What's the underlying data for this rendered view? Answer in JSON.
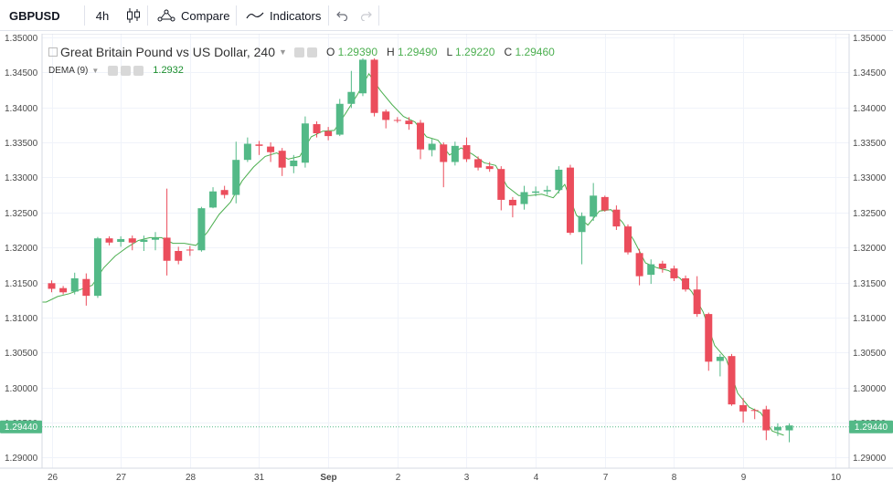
{
  "toolbar": {
    "symbol": "GBPUSD",
    "interval": "4h",
    "compare_label": "Compare",
    "indicators_label": "Indicators",
    "icons": [
      "candles-icon",
      "compare-icon",
      "indicators-icon",
      "undo-icon",
      "redo-icon"
    ]
  },
  "legend": {
    "title": "Great Britain Pound vs US Dollar, 240",
    "open_label": "O",
    "open": "1.29390",
    "high_label": "H",
    "high": "1.29490",
    "low_label": "L",
    "low": "1.29220",
    "close_label": "C",
    "close": "1.29460",
    "indicator_name": "DEMA (9)",
    "indicator_value": "1.2932"
  },
  "price_tag": "1.29440",
  "colors": {
    "up": "#53b987",
    "down": "#eb4d5c",
    "dema": "#4caf50",
    "grid": "#f0f3fa",
    "price_line": "#53b987"
  },
  "chart_data": {
    "type": "candlestick",
    "symbol": "GBPUSD",
    "timeframe": "240",
    "ylim": [
      1.2885,
      1.3505
    ],
    "y_ticks": [
      "1.35000",
      "1.34500",
      "1.34000",
      "1.33500",
      "1.33000",
      "1.32500",
      "1.32000",
      "1.31500",
      "1.31000",
      "1.30500",
      "1.30000",
      "1.29500",
      "1.29000"
    ],
    "x_tick_labels": [
      "26",
      "27",
      "28",
      "31",
      "Sep",
      "2",
      "3",
      "4",
      "7",
      "8",
      "9",
      "10"
    ],
    "grid": true,
    "last_price": 1.2944,
    "candles": [
      {
        "o": 1.3149,
        "h": 1.3153,
        "l": 1.3136,
        "c": 1.3141
      },
      {
        "o": 1.3142,
        "h": 1.3145,
        "l": 1.3133,
        "c": 1.3136
      },
      {
        "o": 1.3137,
        "h": 1.3164,
        "l": 1.3133,
        "c": 1.3156
      },
      {
        "o": 1.3155,
        "h": 1.3163,
        "l": 1.3117,
        "c": 1.3131
      },
      {
        "o": 1.3131,
        "h": 1.3215,
        "l": 1.3128,
        "c": 1.3213
      },
      {
        "o": 1.3213,
        "h": 1.3216,
        "l": 1.3203,
        "c": 1.3207
      },
      {
        "o": 1.3208,
        "h": 1.3216,
        "l": 1.3201,
        "c": 1.3212
      },
      {
        "o": 1.3213,
        "h": 1.3217,
        "l": 1.3196,
        "c": 1.3207
      },
      {
        "o": 1.3208,
        "h": 1.3217,
        "l": 1.3195,
        "c": 1.3211
      },
      {
        "o": 1.3211,
        "h": 1.3222,
        "l": 1.3196,
        "c": 1.3214
      },
      {
        "o": 1.3214,
        "h": 1.3284,
        "l": 1.316,
        "c": 1.3181
      },
      {
        "o": 1.3195,
        "h": 1.3201,
        "l": 1.3176,
        "c": 1.3181
      },
      {
        "o": 1.3197,
        "h": 1.3202,
        "l": 1.3188,
        "c": 1.3196
      },
      {
        "o": 1.3196,
        "h": 1.3258,
        "l": 1.3194,
        "c": 1.3256
      },
      {
        "o": 1.3257,
        "h": 1.3286,
        "l": 1.3256,
        "c": 1.328
      },
      {
        "o": 1.3282,
        "h": 1.3288,
        "l": 1.327,
        "c": 1.3275
      },
      {
        "o": 1.3275,
        "h": 1.3351,
        "l": 1.3263,
        "c": 1.3325
      },
      {
        "o": 1.3325,
        "h": 1.3357,
        "l": 1.3322,
        "c": 1.3348
      },
      {
        "o": 1.3347,
        "h": 1.3352,
        "l": 1.3332,
        "c": 1.3345
      },
      {
        "o": 1.3344,
        "h": 1.335,
        "l": 1.3322,
        "c": 1.3336
      },
      {
        "o": 1.3338,
        "h": 1.3342,
        "l": 1.3302,
        "c": 1.3314
      },
      {
        "o": 1.3316,
        "h": 1.3332,
        "l": 1.3306,
        "c": 1.3324
      },
      {
        "o": 1.3321,
        "h": 1.3387,
        "l": 1.3314,
        "c": 1.3377
      },
      {
        "o": 1.3376,
        "h": 1.338,
        "l": 1.3357,
        "c": 1.3363
      },
      {
        "o": 1.3366,
        "h": 1.3372,
        "l": 1.3353,
        "c": 1.3359
      },
      {
        "o": 1.3361,
        "h": 1.3412,
        "l": 1.3359,
        "c": 1.3405
      },
      {
        "o": 1.3405,
        "h": 1.3452,
        "l": 1.3399,
        "c": 1.3422
      },
      {
        "o": 1.342,
        "h": 1.347,
        "l": 1.3416,
        "c": 1.3468
      },
      {
        "o": 1.3468,
        "h": 1.347,
        "l": 1.3387,
        "c": 1.3392
      },
      {
        "o": 1.3394,
        "h": 1.3397,
        "l": 1.337,
        "c": 1.3382
      },
      {
        "o": 1.3382,
        "h": 1.3386,
        "l": 1.3378,
        "c": 1.3381
      },
      {
        "o": 1.3381,
        "h": 1.3386,
        "l": 1.3368,
        "c": 1.3376
      },
      {
        "o": 1.3378,
        "h": 1.3382,
        "l": 1.3326,
        "c": 1.334
      },
      {
        "o": 1.3339,
        "h": 1.3355,
        "l": 1.333,
        "c": 1.3348
      },
      {
        "o": 1.3347,
        "h": 1.335,
        "l": 1.3286,
        "c": 1.3322
      },
      {
        "o": 1.3322,
        "h": 1.3351,
        "l": 1.3317,
        "c": 1.3345
      },
      {
        "o": 1.3346,
        "h": 1.3357,
        "l": 1.3322,
        "c": 1.3326
      },
      {
        "o": 1.3326,
        "h": 1.333,
        "l": 1.331,
        "c": 1.3314
      },
      {
        "o": 1.3316,
        "h": 1.3322,
        "l": 1.3308,
        "c": 1.3312
      },
      {
        "o": 1.3312,
        "h": 1.3316,
        "l": 1.3253,
        "c": 1.3268
      },
      {
        "o": 1.3268,
        "h": 1.3272,
        "l": 1.3243,
        "c": 1.326
      },
      {
        "o": 1.3262,
        "h": 1.3288,
        "l": 1.3254,
        "c": 1.3279
      },
      {
        "o": 1.3278,
        "h": 1.3287,
        "l": 1.3273,
        "c": 1.328
      },
      {
        "o": 1.328,
        "h": 1.3288,
        "l": 1.3275,
        "c": 1.3282
      },
      {
        "o": 1.3282,
        "h": 1.3316,
        "l": 1.3277,
        "c": 1.3311
      },
      {
        "o": 1.3314,
        "h": 1.3318,
        "l": 1.3218,
        "c": 1.3221
      },
      {
        "o": 1.3222,
        "h": 1.325,
        "l": 1.3176,
        "c": 1.3245
      },
      {
        "o": 1.3244,
        "h": 1.3292,
        "l": 1.3238,
        "c": 1.3274
      },
      {
        "o": 1.3272,
        "h": 1.3274,
        "l": 1.3251,
        "c": 1.3253
      },
      {
        "o": 1.3254,
        "h": 1.326,
        "l": 1.3225,
        "c": 1.323
      },
      {
        "o": 1.323,
        "h": 1.3233,
        "l": 1.319,
        "c": 1.3193
      },
      {
        "o": 1.3192,
        "h": 1.3198,
        "l": 1.3146,
        "c": 1.3159
      },
      {
        "o": 1.3161,
        "h": 1.3183,
        "l": 1.3148,
        "c": 1.3176
      },
      {
        "o": 1.3177,
        "h": 1.3181,
        "l": 1.3164,
        "c": 1.317
      },
      {
        "o": 1.317,
        "h": 1.3174,
        "l": 1.3152,
        "c": 1.3156
      },
      {
        "o": 1.3156,
        "h": 1.316,
        "l": 1.3137,
        "c": 1.314
      },
      {
        "o": 1.314,
        "h": 1.3159,
        "l": 1.3101,
        "c": 1.3105
      },
      {
        "o": 1.3105,
        "h": 1.3107,
        "l": 1.3024,
        "c": 1.3037
      },
      {
        "o": 1.3038,
        "h": 1.3048,
        "l": 1.3016,
        "c": 1.3044
      },
      {
        "o": 1.3045,
        "h": 1.3048,
        "l": 1.2974,
        "c": 1.2976
      },
      {
        "o": 1.2975,
        "h": 1.2985,
        "l": 1.295,
        "c": 1.2966
      },
      {
        "o": 1.2968,
        "h": 1.297,
        "l": 1.2955,
        "c": 1.2967
      },
      {
        "o": 1.2969,
        "h": 1.2974,
        "l": 1.2925,
        "c": 1.2939
      },
      {
        "o": 1.2939,
        "h": 1.2949,
        "l": 1.2931,
        "c": 1.2944
      },
      {
        "o": 1.2939,
        "h": 1.2949,
        "l": 1.2922,
        "c": 1.2946
      }
    ],
    "indicator": {
      "name": "DEMA (9)",
      "last_value": 1.2932,
      "values": [
        1.3122,
        1.313,
        1.3134,
        1.314,
        1.3146,
        1.3171,
        1.3188,
        1.32,
        1.321,
        1.3214,
        1.3214,
        1.3206,
        1.3206,
        1.3203,
        1.3222,
        1.3247,
        1.3265,
        1.3295,
        1.3315,
        1.333,
        1.3335,
        1.3326,
        1.333,
        1.3358,
        1.3366,
        1.3367,
        1.3392,
        1.3418,
        1.3448,
        1.3424,
        1.3404,
        1.3387,
        1.3379,
        1.3358,
        1.3353,
        1.3332,
        1.3342,
        1.3333,
        1.3321,
        1.3317,
        1.3287,
        1.3274,
        1.3274,
        1.3276,
        1.3271,
        1.329,
        1.3246,
        1.3232,
        1.3252,
        1.3254,
        1.3236,
        1.321,
        1.3178,
        1.3171,
        1.3167,
        1.3156,
        1.3137,
        1.3108,
        1.306,
        1.3041,
        1.2992,
        1.2972,
        1.2964,
        1.2938,
        1.2932
      ]
    }
  }
}
